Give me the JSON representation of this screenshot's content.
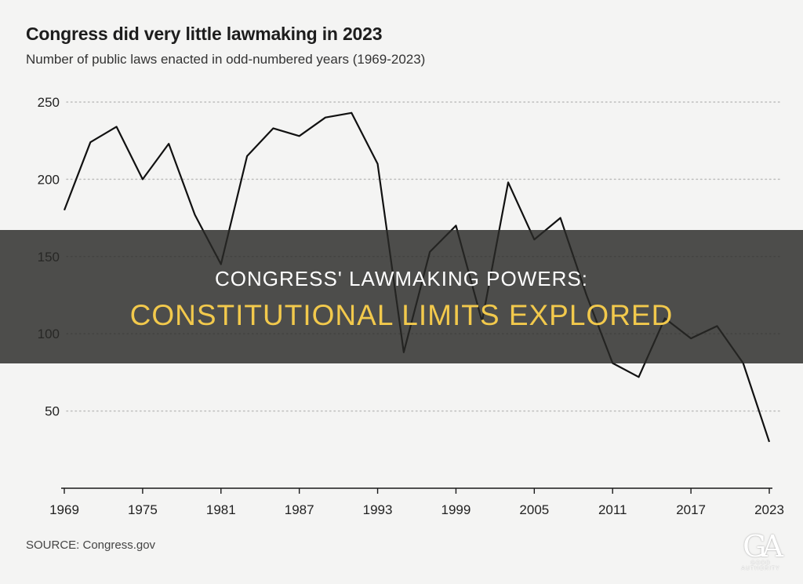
{
  "chart_data": {
    "type": "line",
    "title": "Congress did very little lawmaking in 2023",
    "subtitle": "Number of public laws enacted in odd-numbered years (1969-2023)",
    "xlabel": "",
    "ylabel": "",
    "x": [
      1969,
      1971,
      1973,
      1975,
      1977,
      1979,
      1981,
      1983,
      1985,
      1987,
      1989,
      1991,
      1993,
      1995,
      1997,
      1999,
      2001,
      2003,
      2005,
      2007,
      2009,
      2011,
      2013,
      2015,
      2017,
      2019,
      2021,
      2023
    ],
    "values": [
      180,
      224,
      234,
      200,
      223,
      177,
      145,
      215,
      233,
      228,
      240,
      243,
      210,
      88,
      153,
      170,
      108,
      198,
      161,
      175,
      125,
      81,
      72,
      110,
      97,
      105,
      81,
      30
    ],
    "xlim": [
      1969,
      2023
    ],
    "ylim": [
      0,
      250
    ],
    "x_ticks": [
      "1969",
      "1975",
      "1981",
      "1987",
      "1993",
      "1999",
      "2005",
      "2011",
      "2017",
      "2023"
    ],
    "y_ticks": [
      "50",
      "100",
      "150",
      "200",
      "250"
    ],
    "grid": "horizontal dotted",
    "line_color": "#111111"
  },
  "source": "SOURCE: Congress.gov",
  "banner": {
    "line1": "CONGRESS' LAWMAKING POWERS:",
    "line2": "CONSTITUTIONAL LIMITS EXPLORED"
  },
  "logo": {
    "mark": "GA",
    "text": "GOOD AUTHORITY"
  }
}
